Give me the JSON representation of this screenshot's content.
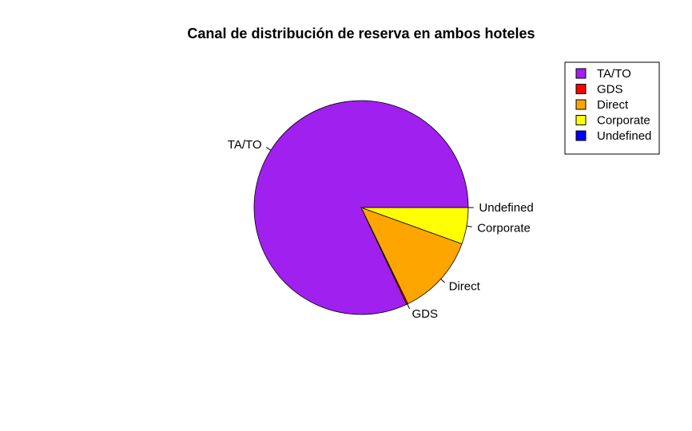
{
  "chart_data": {
    "type": "pie",
    "title": "Canal de distribución de reserva en ambos hoteles",
    "categories": [
      "TA/TO",
      "GDS",
      "Direct",
      "Corporate",
      "Undefined"
    ],
    "values": [
      82.0,
      0.2,
      12.3,
      5.5,
      0.01
    ],
    "colors": [
      "#A020F0",
      "#FF0000",
      "#FFA500",
      "#FFFF00",
      "#0000FF"
    ],
    "legend": {
      "position": "top-right",
      "entries": [
        "TA/TO",
        "GDS",
        "Direct",
        "Corporate",
        "Undefined"
      ]
    }
  }
}
